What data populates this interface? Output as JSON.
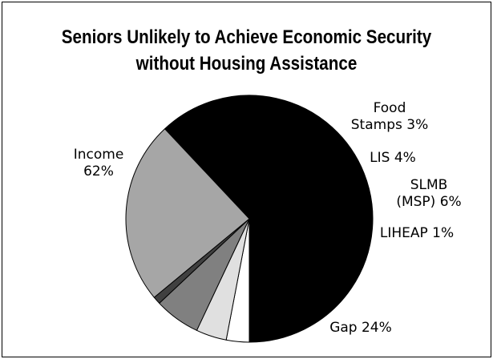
{
  "chart_data": {
    "type": "pie",
    "title_lines": [
      "Seniors Unlikely to Achieve Economic Security",
      "without Housing Assistance"
    ],
    "slices": [
      {
        "label_lines": [
          "Income",
          "62%"
        ],
        "value": 62,
        "color": "#000000"
      },
      {
        "label_lines": [
          "Food",
          "Stamps 3%"
        ],
        "value": 3,
        "color": "#ffffff"
      },
      {
        "label_lines": [
          "LIS 4%"
        ],
        "value": 4,
        "color": "#e0e0e0"
      },
      {
        "label_lines": [
          "SLMB",
          "(MSP) 6%"
        ],
        "value": 6,
        "color": "#808080"
      },
      {
        "label_lines": [
          "LIHEAP 1%"
        ],
        "value": 1,
        "color": "#404040"
      },
      {
        "label_lines": [
          "Gap 24%"
        ],
        "value": 24,
        "color": "#a6a6a6"
      }
    ],
    "legend": "none"
  }
}
